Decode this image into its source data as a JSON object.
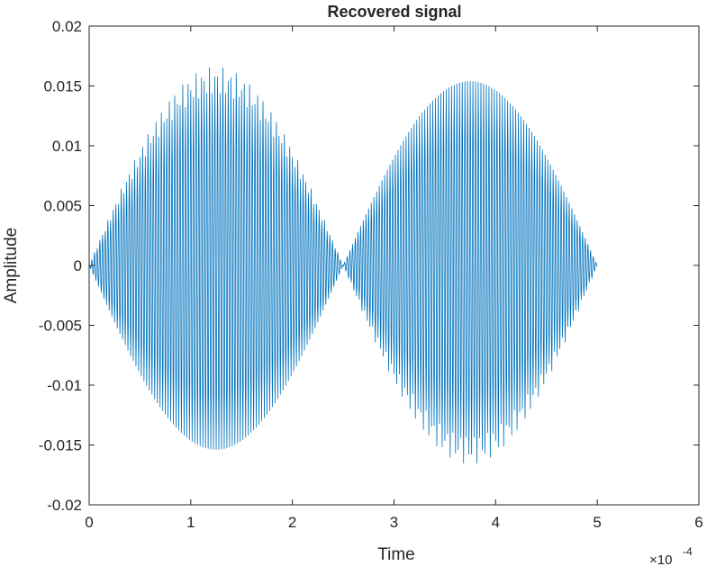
{
  "chart_data": {
    "type": "line",
    "title": "Recovered signal",
    "xlabel": "Time",
    "ylabel": "Amplitude",
    "x_exponent_label": "×10",
    "x_exponent_power": "-4",
    "xlim": [
      0,
      6
    ],
    "ylim": [
      -0.02,
      0.02
    ],
    "x_ticks": [
      "0",
      "1",
      "2",
      "3",
      "4",
      "5",
      "6"
    ],
    "y_ticks": [
      "-0.02",
      "-0.015",
      "-0.01",
      "-0.005",
      "0",
      "0.005",
      "0.01",
      "0.015",
      "0.02"
    ],
    "grid": false,
    "legend": "none",
    "series_color": "#0072BD",
    "signal": {
      "x_start": 0,
      "x_end": 5,
      "peak_amplitude": 0.0154,
      "peak_times": [
        1.0,
        4.02
      ],
      "zero_crossing_envelope": 2.5,
      "carrier_cycles": 190
    }
  }
}
